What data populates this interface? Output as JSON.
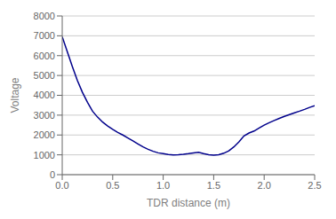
{
  "chart_data": {
    "type": "line",
    "title": "",
    "xlabel": "TDR distance (m)",
    "ylabel": "Voltage",
    "xlim": [
      0,
      2.5
    ],
    "ylim": [
      0,
      8000
    ],
    "xticks": [
      {
        "value": 0,
        "label": "0.0"
      },
      0.5,
      {
        "value": 1,
        "label": "1.0"
      },
      1.5,
      {
        "value": 2,
        "label": "2.0"
      },
      2.5
    ],
    "yticks": [
      0,
      1000,
      2000,
      3000,
      4000,
      5000,
      6000,
      7000,
      8000
    ],
    "color": "#00008B",
    "grid": "y",
    "x": [
      0.0,
      0.05,
      0.1,
      0.15,
      0.2,
      0.25,
      0.3,
      0.35,
      0.4,
      0.45,
      0.5,
      0.55,
      0.6,
      0.65,
      0.7,
      0.75,
      0.8,
      0.85,
      0.9,
      0.95,
      1.0,
      1.05,
      1.1,
      1.15,
      1.2,
      1.25,
      1.3,
      1.35,
      1.4,
      1.45,
      1.5,
      1.55,
      1.6,
      1.65,
      1.7,
      1.75,
      1.8,
      1.85,
      1.9,
      1.95,
      2.0,
      2.05,
      2.1,
      2.15,
      2.2,
      2.25,
      2.3,
      2.35,
      2.4,
      2.45,
      2.5
    ],
    "values": [
      6950,
      6200,
      5450,
      4750,
      4150,
      3650,
      3200,
      2900,
      2650,
      2450,
      2280,
      2130,
      2000,
      1850,
      1700,
      1550,
      1400,
      1280,
      1180,
      1100,
      1060,
      1020,
      1000,
      1010,
      1030,
      1060,
      1100,
      1130,
      1060,
      1010,
      980,
      1010,
      1080,
      1200,
      1400,
      1650,
      1950,
      2100,
      2200,
      2350,
      2500,
      2620,
      2730,
      2840,
      2940,
      3030,
      3120,
      3200,
      3290,
      3390,
      3480
    ]
  }
}
